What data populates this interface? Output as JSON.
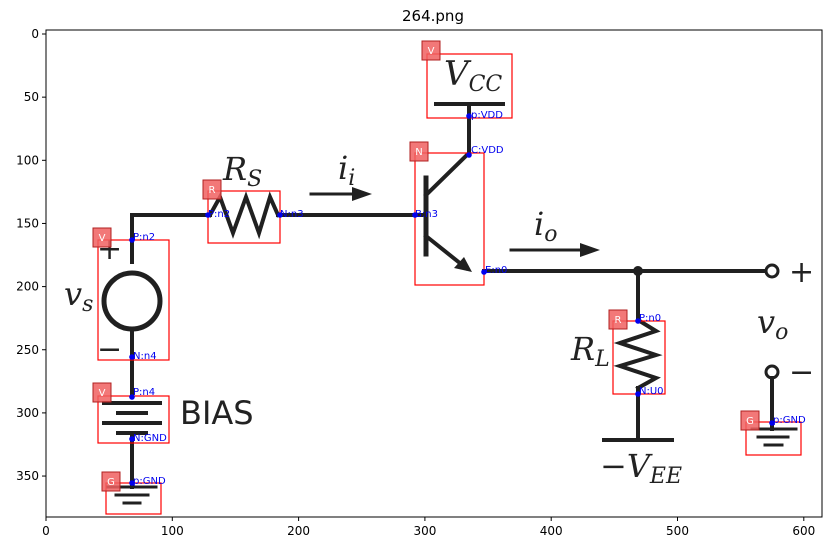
{
  "title": "264.png",
  "axes": {
    "x_ticks": [
      "0",
      "100",
      "200",
      "300",
      "400",
      "500",
      "600"
    ],
    "y_ticks": [
      "0",
      "50",
      "100",
      "150",
      "200",
      "250",
      "300",
      "350"
    ]
  },
  "diagram": {
    "labels": {
      "vcc": "V",
      "vcc_sub": "CC",
      "rs": "R",
      "rs_sub": "S",
      "ii": "i",
      "ii_sub": "i",
      "io": "i",
      "io_sub": "o",
      "vs": "v",
      "vs_sub": "s",
      "rl": "R",
      "rl_sub": "L",
      "vo": "v",
      "vo_sub": "o",
      "vee": "−V",
      "vee_sub": "EE",
      "bias": "BIAS",
      "plus_src": "+",
      "minus_src": "−",
      "plus_out": "+",
      "minus_out": "−"
    },
    "components": [
      {
        "id": "vcc",
        "type": "V"
      },
      {
        "id": "npn",
        "type": "N"
      },
      {
        "id": "rs",
        "type": "R"
      },
      {
        "id": "vs",
        "type": "V"
      },
      {
        "id": "bias",
        "type": "V"
      },
      {
        "id": "gnd1",
        "type": "G"
      },
      {
        "id": "rl",
        "type": "R"
      },
      {
        "id": "gnd2",
        "type": "G"
      }
    ],
    "pins": [
      {
        "id": "vcc_p",
        "label": "p:VDD"
      },
      {
        "id": "npn_c",
        "label": "C:VDD"
      },
      {
        "id": "npn_b",
        "label": "B:n3"
      },
      {
        "id": "npn_e",
        "label": "E:n0"
      },
      {
        "id": "rs_p",
        "label": "P:n2"
      },
      {
        "id": "rs_n",
        "label": "N:n3"
      },
      {
        "id": "vs_p",
        "label": "P:n2"
      },
      {
        "id": "vs_n",
        "label": "N:n4"
      },
      {
        "id": "bias_p",
        "label": "P:n4"
      },
      {
        "id": "bias_n",
        "label": "N:GND"
      },
      {
        "id": "gnd1_p",
        "label": "p:GND"
      },
      {
        "id": "rl_p",
        "label": "P:n0"
      },
      {
        "id": "rl_n",
        "label": "N:U0"
      },
      {
        "id": "gnd2_p",
        "label": "p:GND"
      }
    ]
  }
}
